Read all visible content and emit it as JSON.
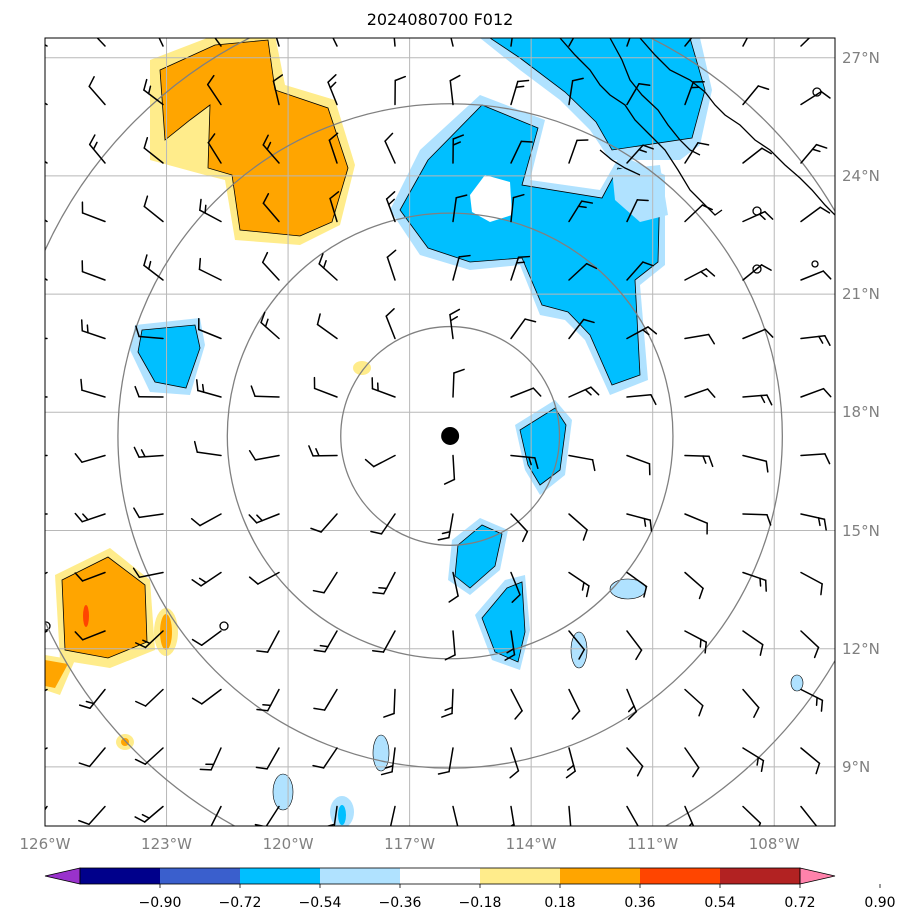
{
  "title": "2024080700 F012",
  "map": {
    "lon_range": [
      -126,
      -106.5
    ],
    "lat_range": [
      7.5,
      27.5
    ],
    "lon_ticks": [
      "126°W",
      "123°W",
      "120°W",
      "117°W",
      "114°W",
      "111°W",
      "108°W"
    ],
    "lat_ticks": [
      "9°N",
      "12°N",
      "15°N",
      "18°N",
      "21°N",
      "24°N",
      "27°N"
    ],
    "storm_center": {
      "lon": -116.0,
      "lat": 17.4
    },
    "range_rings_deg": [
      2.7,
      5.5,
      8.2,
      11.0
    ]
  },
  "colorbar": {
    "levels": [
      "−0.90",
      "−0.72",
      "−0.54",
      "−0.36",
      "−0.18",
      "0.18",
      "0.36",
      "0.54",
      "0.72",
      "0.90"
    ],
    "colors": [
      "#9932cc",
      "#00008b",
      "#3a5fcd",
      "#00bfff",
      "#b0e2ff",
      "#ffffff",
      "#ffec8b",
      "#ffa500",
      "#ff4500",
      "#b22222",
      "#ff82ab"
    ]
  },
  "colors": {
    "grid": "#b8b8b8",
    "rings": "#808080",
    "coast": "#000000"
  }
}
